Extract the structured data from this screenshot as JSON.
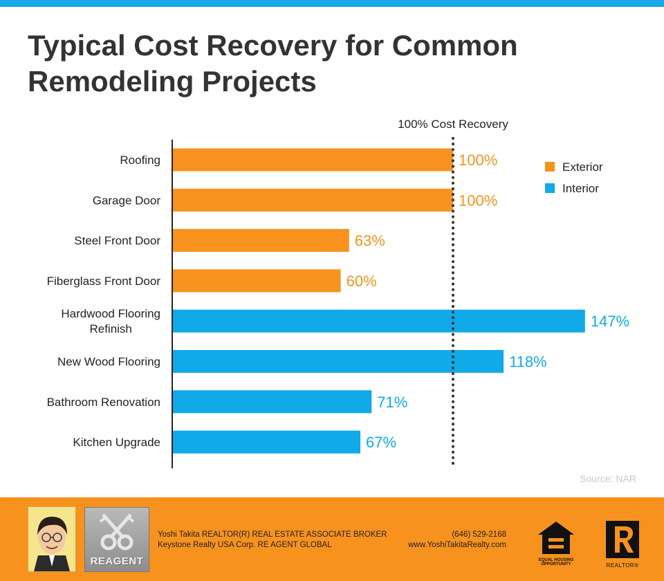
{
  "title": "Typical Cost Recovery for Common Remodeling Projects",
  "chart_data": {
    "type": "bar",
    "orientation": "horizontal",
    "title": "Typical Cost Recovery for Common Remodeling Projects",
    "reference_line": {
      "value": 100,
      "label": "100% Cost Recovery"
    },
    "categories": [
      [
        "Roofing"
      ],
      [
        "Garage Door"
      ],
      [
        "Steel Front Door"
      ],
      [
        "Fiberglass Front Door"
      ],
      [
        "Hardwood Flooring",
        "Refinish"
      ],
      [
        "New Wood Flooring"
      ],
      [
        "Bathroom Renovation"
      ],
      [
        "Kitchen Upgrade"
      ]
    ],
    "values": [
      100,
      100,
      63,
      60,
      147,
      118,
      71,
      67
    ],
    "value_labels": [
      "100%",
      "100%",
      "63%",
      "60%",
      "147%",
      "118%",
      "71%",
      "67%"
    ],
    "groups": [
      "Exterior",
      "Exterior",
      "Exterior",
      "Exterior",
      "Interior",
      "Interior",
      "Interior",
      "Interior"
    ],
    "legend": [
      {
        "name": "Exterior",
        "color": "#f7921e"
      },
      {
        "name": "Interior",
        "color": "#10aae8"
      }
    ],
    "legend_position": "top-right",
    "xlim": [
      0,
      155
    ]
  },
  "source": "Source: NAR",
  "footer": {
    "logo_text": "REAGENT",
    "agent_line1": "Yoshi Takita REALTOR(R) REAL ESTATE ASSOCIATE BROKER",
    "agent_line2": "Keystone Realty USA Corp.  RE AGENT GLOBAL",
    "phone": "(646) 529-2168",
    "website": "www.YoshiTakitaRealty.com",
    "eho_line1": "EQUAL HOUSING",
    "eho_line2": "OPPORTUNITY",
    "realtor_label": "REALTOR®"
  }
}
